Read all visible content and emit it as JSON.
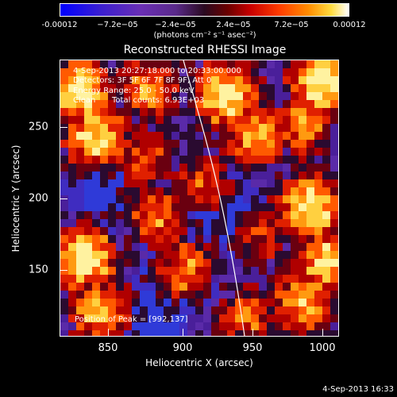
{
  "colorbar": {
    "ticks": [
      "-0.00012",
      "−7.2e−05",
      "−2.4e−05",
      "2.4e−05",
      "7.2e−05",
      "0.00012"
    ],
    "units": "(photons cm⁻² s⁻¹ asec⁻²)",
    "colors": [
      "#0000ff",
      "#6a2fb4",
      "#2a0a20",
      "#c80000",
      "#ff8c00",
      "#ffffff"
    ]
  },
  "plot": {
    "title": "Reconstructed RHESSI Image",
    "annotations": {
      "time_range": "4-Sep-2013 20:27:18.000 to 20:33:00.000",
      "detectors": "Detectors: 3F 5F 6F 7F 8F 9F, Att 0",
      "energy_range": "Energy Range: 25.0 - 50.0 keV",
      "method": "Clean",
      "total_counts": "Total counts: 6.93E+03",
      "peak_position": "Position of Peak = [992,137]"
    },
    "x_axis": {
      "label": "Heliocentric X (arcsec)",
      "ticks": [
        "850",
        "900",
        "950",
        "1000"
      ]
    },
    "y_axis": {
      "label": "Heliocentric Y (arcsec)",
      "ticks": [
        "250",
        "200",
        "150"
      ]
    }
  },
  "footer": {
    "timestamp": "4-Sep-2013 16:33"
  }
}
